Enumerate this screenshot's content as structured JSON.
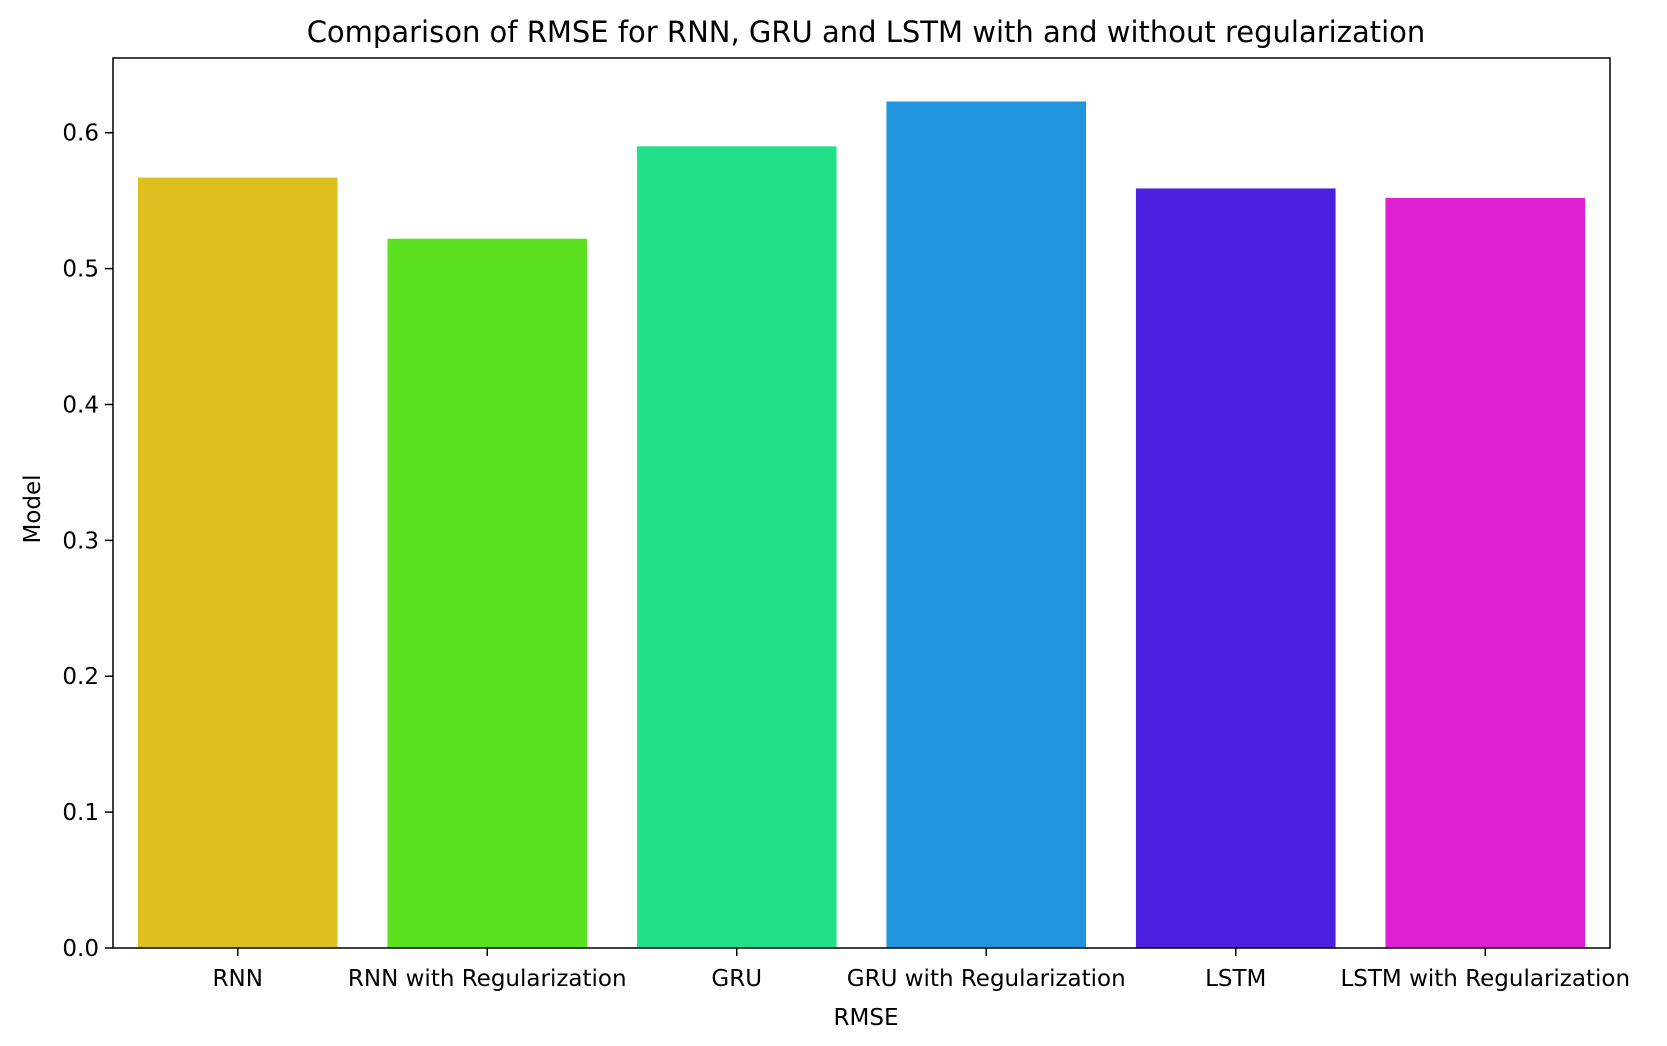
{
  "chart_data": {
    "type": "bar",
    "title": "Comparison of RMSE for RNN, GRU and LSTM with and without regularization",
    "xlabel": "RMSE",
    "ylabel": "Model",
    "categories": [
      "RNN",
      "RNN with Regularization",
      "GRU",
      "GRU with Regularization",
      "LSTM",
      "LSTM with Regularization"
    ],
    "values": [
      0.567,
      0.522,
      0.59,
      0.623,
      0.559,
      0.552
    ],
    "colors": [
      "#dfbf20",
      "#5ce120",
      "#20e088",
      "#2095de",
      "#4b20e0",
      "#df20d0"
    ],
    "ylim": [
      0,
      0.655
    ],
    "yticks": [
      "0.0",
      "0.1",
      "0.2",
      "0.3",
      "0.4",
      "0.5",
      "0.6"
    ],
    "grid": false,
    "legend": "none"
  }
}
